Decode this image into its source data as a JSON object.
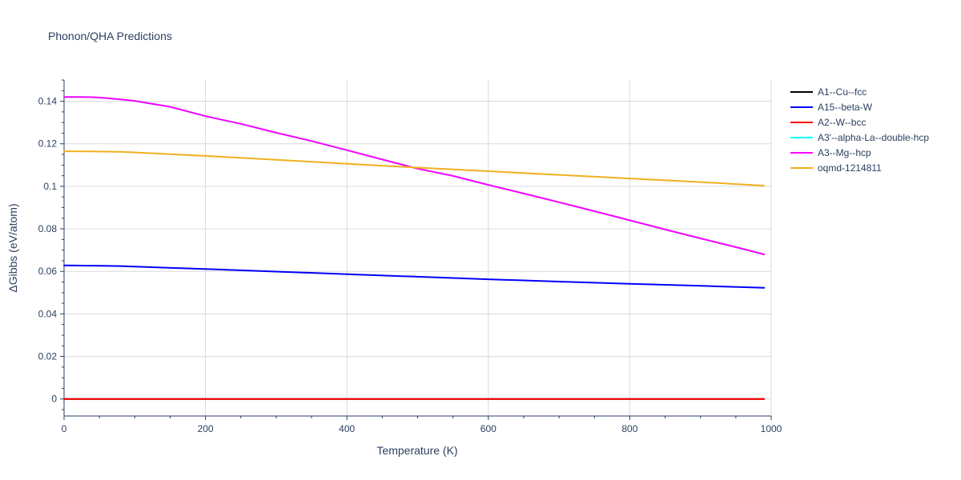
{
  "chart_data": {
    "type": "line",
    "title": "Phonon/QHA Predictions",
    "xlabel": "Temperature (K)",
    "ylabel": "ΔGibbs (eV/atom)",
    "xlim": [
      0,
      1000
    ],
    "ylim": [
      -0.008,
      0.15
    ],
    "x_ticks": [
      0,
      200,
      400,
      600,
      800,
      1000
    ],
    "y_ticks": [
      0,
      0.02,
      0.04,
      0.06,
      0.08,
      0.1,
      0.12,
      0.14
    ],
    "grid": true,
    "legend_position": "right",
    "series": [
      {
        "name": "A1--Cu--fcc",
        "color": "#000000",
        "x": [
          0,
          990
        ],
        "y": [
          0,
          0
        ]
      },
      {
        "name": "A15--beta-W",
        "color": "#0000ff",
        "x": [
          0,
          40,
          80,
          120,
          200,
          300,
          400,
          500,
          600,
          700,
          800,
          900,
          990
        ],
        "y": [
          0.0628,
          0.0627,
          0.0625,
          0.062,
          0.0611,
          0.0599,
          0.0587,
          0.0575,
          0.0563,
          0.0552,
          0.0542,
          0.0532,
          0.0523
        ]
      },
      {
        "name": "A2--W--bcc",
        "color": "#ff0000",
        "x": [
          0,
          990
        ],
        "y": [
          0,
          0
        ]
      },
      {
        "name": "A3'--alpha-La--double-hcp",
        "color": "#00ffff",
        "x": [
          0,
          20,
          40,
          60,
          80,
          100,
          150,
          200,
          250,
          300,
          350,
          400,
          450,
          500,
          550,
          600,
          650,
          700,
          750,
          800,
          850,
          900,
          950,
          990
        ],
        "y": [
          0.142,
          0.142,
          0.1419,
          0.1415,
          0.1409,
          0.1402,
          0.1374,
          0.133,
          0.1294,
          0.1252,
          0.1213,
          0.117,
          0.1126,
          0.1083,
          0.1049,
          0.1007,
          0.0966,
          0.0925,
          0.0883,
          0.084,
          0.0797,
          0.0755,
          0.0714,
          0.068
        ]
      },
      {
        "name": "A3--Mg--hcp",
        "color": "#ff00ff",
        "x": [
          0,
          20,
          40,
          60,
          80,
          100,
          150,
          200,
          250,
          300,
          350,
          400,
          450,
          500,
          550,
          600,
          650,
          700,
          750,
          800,
          850,
          900,
          950,
          990
        ],
        "y": [
          0.142,
          0.142,
          0.1419,
          0.1415,
          0.1409,
          0.1402,
          0.1374,
          0.133,
          0.1294,
          0.1252,
          0.1213,
          0.117,
          0.1126,
          0.1083,
          0.1049,
          0.1007,
          0.0966,
          0.0925,
          0.0883,
          0.084,
          0.0797,
          0.0755,
          0.0714,
          0.068
        ]
      },
      {
        "name": "oqmd-1214811",
        "color": "#f0b020",
        "x": [
          0,
          40,
          80,
          120,
          200,
          300,
          400,
          500,
          600,
          700,
          800,
          900,
          990
        ],
        "y": [
          0.1165,
          0.1164,
          0.1162,
          0.1156,
          0.1143,
          0.1125,
          0.1106,
          0.1088,
          0.1071,
          0.1054,
          0.1037,
          0.102,
          0.1003
        ]
      }
    ]
  }
}
